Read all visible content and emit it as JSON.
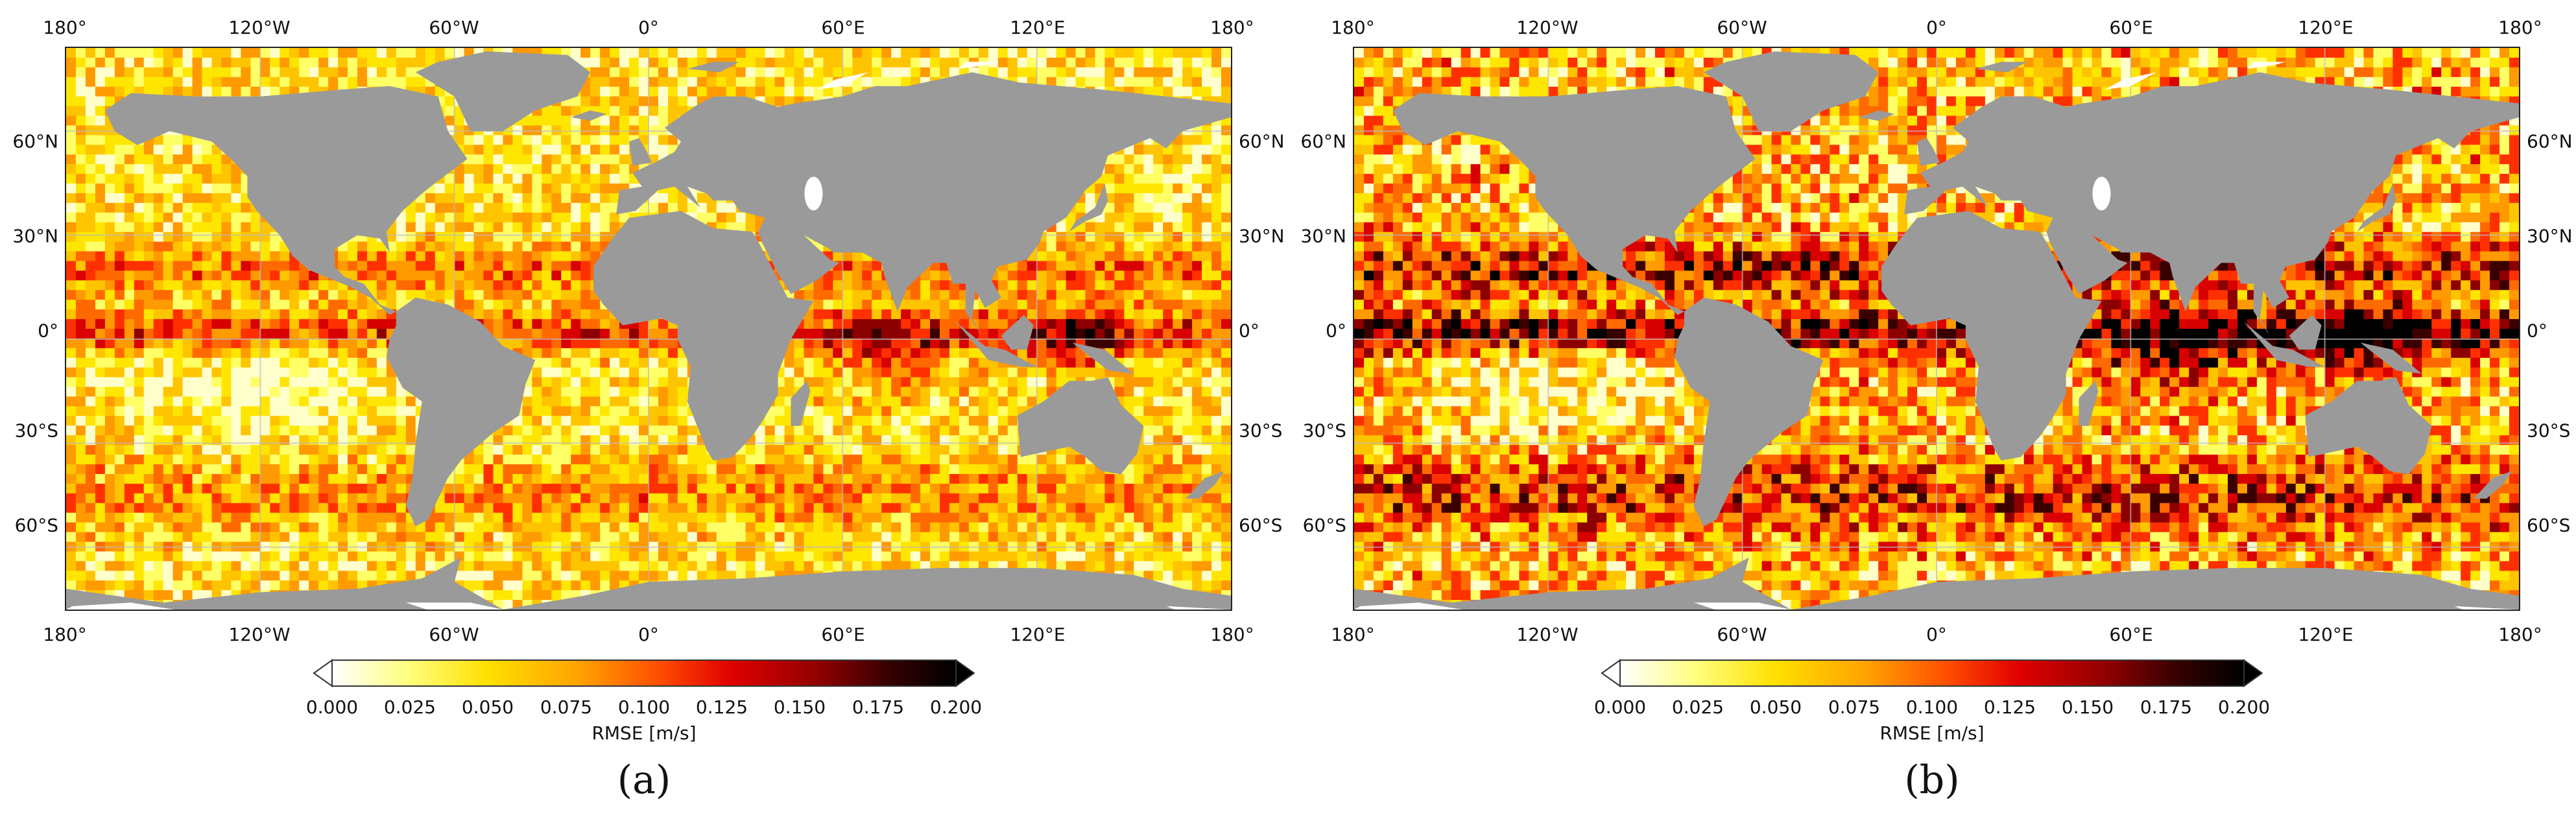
{
  "panels": [
    {
      "label": "(a)",
      "lon_ticks": [
        "180°",
        "120°W",
        "60°W",
        "0°",
        "60°E",
        "120°E",
        "180°"
      ],
      "lat_ticks": [
        "60°N",
        "30°N",
        "0°",
        "30°S",
        "60°S"
      ],
      "colorbar": {
        "ticks": [
          "0.000",
          "0.025",
          "0.050",
          "0.075",
          "0.100",
          "0.125",
          "0.150",
          "0.175",
          "0.200"
        ],
        "label": "RMSE [m/s]",
        "extend": "both"
      },
      "ocean_intensity": "moderate"
    },
    {
      "label": "(b)",
      "lon_ticks": [
        "180°",
        "120°W",
        "60°W",
        "0°",
        "60°E",
        "120°E",
        "180°"
      ],
      "lat_ticks": [
        "60°N",
        "30°N",
        "0°",
        "30°S",
        "60°S"
      ],
      "colorbar": {
        "ticks": [
          "0.000",
          "0.025",
          "0.050",
          "0.075",
          "0.100",
          "0.125",
          "0.150",
          "0.175",
          "0.200"
        ],
        "label": "RMSE [m/s]",
        "extend": "both"
      },
      "ocean_intensity": "high"
    }
  ],
  "colors": {
    "land": "#9a9a9a",
    "ice": "#ffffff",
    "colormap": [
      "#ffffff",
      "#ffff80",
      "#ffe000",
      "#ffa000",
      "#ff5000",
      "#e00000",
      "#900000",
      "#300000",
      "#000000"
    ]
  }
}
